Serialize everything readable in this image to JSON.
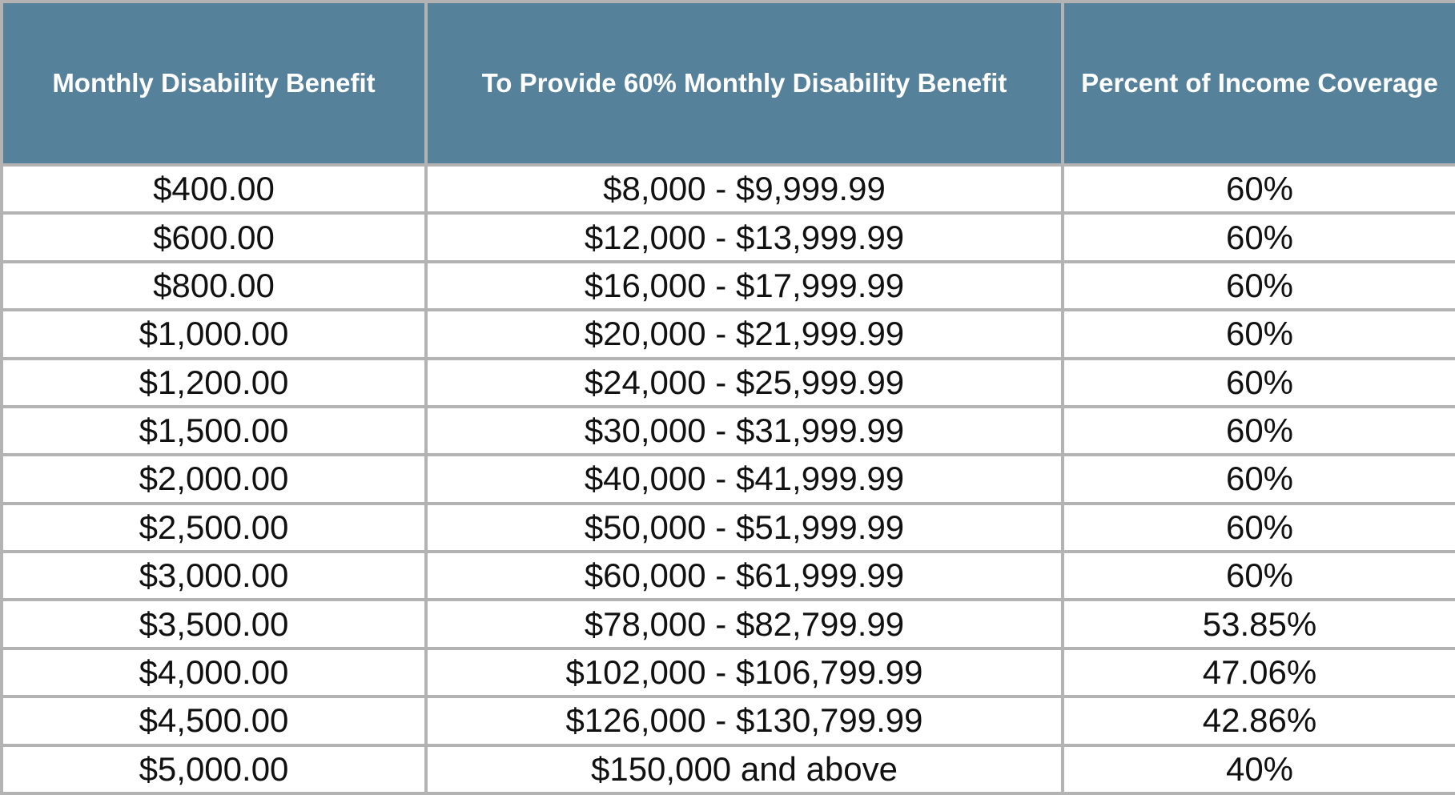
{
  "table": {
    "columns": [
      "Monthly Disability Benefit",
      "To Provide 60% Monthly Disability Benefit",
      "Percent of Income Coverage"
    ],
    "rows": [
      [
        "$400.00",
        "$8,000 - $9,999.99",
        "60%"
      ],
      [
        "$600.00",
        "$12,000 - $13,999.99",
        "60%"
      ],
      [
        "$800.00",
        "$16,000 - $17,999.99",
        "60%"
      ],
      [
        "$1,000.00",
        "$20,000 - $21,999.99",
        "60%"
      ],
      [
        "$1,200.00",
        "$24,000 - $25,999.99",
        "60%"
      ],
      [
        "$1,500.00",
        "$30,000 - $31,999.99",
        "60%"
      ],
      [
        "$2,000.00",
        "$40,000 - $41,999.99",
        "60%"
      ],
      [
        "$2,500.00",
        "$50,000 - $51,999.99",
        "60%"
      ],
      [
        "$3,000.00",
        "$60,000 - $61,999.99",
        "60%"
      ],
      [
        "$3,500.00",
        "$78,000 - $82,799.99",
        "53.85%"
      ],
      [
        "$4,000.00",
        "$102,000 - $106,799.99",
        "47.06%"
      ],
      [
        "$4,500.00",
        "$126,000 - $130,799.99",
        "42.86%"
      ],
      [
        "$5,000.00",
        "$150,000 and above",
        "40%"
      ]
    ]
  }
}
